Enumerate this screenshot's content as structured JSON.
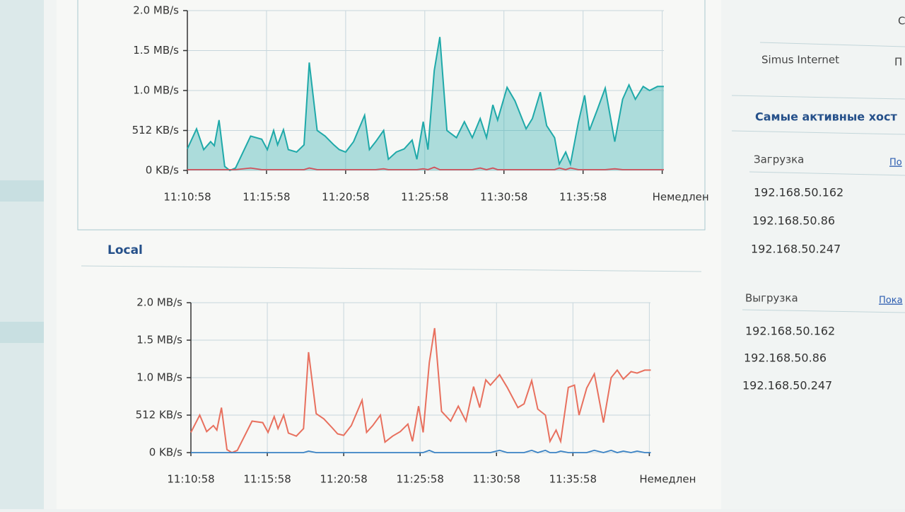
{
  "chart_data": [
    {
      "type": "area",
      "x": [
        0,
        0.58,
        1.03,
        1.47,
        1.7,
        2.0,
        2.36,
        2.68,
        3.04,
        4.0,
        4.7,
        5.05,
        5.45,
        5.7,
        6.07,
        6.38,
        6.9,
        7.37,
        7.7,
        8.2,
        8.7,
        9.25,
        9.6,
        10.0,
        10.5,
        11.2,
        11.5,
        11.9,
        12.4,
        12.7,
        13.2,
        13.7,
        14.2,
        14.5,
        14.9,
        15.2,
        15.6,
        15.95,
        16.4,
        17.0,
        17.5,
        18.0,
        18.5,
        18.9,
        19.3,
        19.6,
        20.2,
        20.7,
        21.4,
        21.8,
        22.3,
        22.7,
        23.2,
        23.5,
        23.9,
        24.2,
        24.7,
        25.1,
        25.4,
        25.9,
        26.4,
        27.0,
        27.5,
        27.9,
        28.3,
        28.8,
        29.2,
        29.7,
        30.1
      ],
      "series": [
        {
          "color": "#1fa9a9",
          "values": [
            0.27,
            0.52,
            0.26,
            0.36,
            0.31,
            0.63,
            0.05,
            0,
            0.03,
            0.43,
            0.39,
            0.26,
            0.5,
            0.32,
            0.51,
            0.26,
            0.23,
            0.32,
            1.35,
            0.5,
            0.43,
            0.32,
            0.26,
            0.23,
            0.36,
            0.69,
            0.26,
            0.36,
            0.5,
            0.14,
            0.23,
            0.27,
            0.38,
            0.14,
            0.61,
            0.26,
            1.25,
            1.67,
            0.5,
            0.41,
            0.61,
            0.41,
            0.65,
            0.41,
            0.82,
            0.63,
            1.04,
            0.87,
            0.52,
            0.65,
            0.98,
            0.56,
            0.41,
            0.08,
            0.23,
            0.08,
            0.6,
            0.94,
            0.5,
            0.76,
            1.03,
            0.36,
            0.89,
            1.07,
            0.89,
            1.05,
            1.0,
            1.05,
            1.05
          ]
        },
        {
          "color": "#d2505a",
          "values": [
            0.01,
            0.01,
            0.01,
            0.01,
            0.01,
            0.01,
            0.01,
            0.01,
            0.01,
            0.03,
            0.01,
            0.01,
            0.01,
            0.01,
            0.01,
            0.01,
            0.01,
            0.01,
            0.03,
            0.01,
            0.01,
            0.01,
            0.01,
            0.01,
            0.01,
            0.01,
            0.01,
            0.01,
            0.02,
            0.01,
            0.01,
            0.01,
            0.01,
            0.01,
            0.02,
            0.01,
            0.04,
            0.01,
            0.01,
            0.01,
            0.01,
            0.01,
            0.03,
            0.01,
            0.03,
            0.01,
            0.01,
            0.01,
            0.01,
            0.01,
            0.01,
            0.01,
            0.01,
            0.03,
            0.01,
            0.03,
            0.01,
            0.01,
            0.01,
            0.01,
            0.01,
            0.02,
            0.01,
            0.01,
            0.01,
            0.01,
            0.01,
            0.01,
            0.01
          ]
        }
      ],
      "xlim": [
        0,
        31
      ],
      "xticks": [
        {
          "value": 0,
          "label": "11:10:58"
        },
        {
          "value": 5,
          "label": "11:15:58"
        },
        {
          "value": 10,
          "label": "11:20:58"
        },
        {
          "value": 15,
          "label": "11:25:58"
        },
        {
          "value": 20,
          "label": "11:30:58"
        },
        {
          "value": 25,
          "label": "11:35:58"
        },
        {
          "value": 30,
          "label": "Немедлен"
        }
      ],
      "ylim": [
        0,
        2
      ],
      "yticks": [
        {
          "value": 0,
          "label": "0 KB/s"
        },
        {
          "value": 0.5,
          "label": "512 KB/s"
        },
        {
          "value": 1,
          "label": "1.0 MB/s"
        },
        {
          "value": 1.5,
          "label": "1.5 MB/s"
        },
        {
          "value": 2,
          "label": "2.0 MB/s"
        }
      ],
      "grid": true
    },
    {
      "type": "line",
      "title": "Local",
      "x": [
        0,
        0.58,
        1.03,
        1.47,
        1.7,
        2.0,
        2.36,
        2.68,
        3.04,
        4.0,
        4.7,
        5.05,
        5.45,
        5.7,
        6.07,
        6.38,
        6.9,
        7.37,
        7.7,
        8.2,
        8.7,
        9.25,
        9.6,
        10.0,
        10.5,
        11.2,
        11.5,
        11.9,
        12.4,
        12.7,
        13.2,
        13.7,
        14.2,
        14.5,
        14.9,
        15.2,
        15.6,
        15.95,
        16.4,
        17.0,
        17.5,
        18.0,
        18.5,
        18.9,
        19.3,
        19.6,
        20.2,
        20.7,
        21.4,
        21.8,
        22.3,
        22.7,
        23.2,
        23.5,
        23.9,
        24.2,
        24.7,
        25.1,
        25.4,
        25.9,
        26.4,
        27.0,
        27.5,
        27.9,
        28.3,
        28.8,
        29.2,
        29.7,
        30.1
      ],
      "series": [
        {
          "color": "#e8705e",
          "values": [
            0.27,
            0.5,
            0.28,
            0.36,
            0.3,
            0.6,
            0.04,
            0,
            0.03,
            0.42,
            0.4,
            0.27,
            0.48,
            0.32,
            0.5,
            0.26,
            0.22,
            0.32,
            1.34,
            0.52,
            0.45,
            0.33,
            0.25,
            0.23,
            0.36,
            0.7,
            0.27,
            0.36,
            0.5,
            0.14,
            0.22,
            0.28,
            0.38,
            0.15,
            0.62,
            0.27,
            1.2,
            1.66,
            0.55,
            0.42,
            0.62,
            0.42,
            0.88,
            0.6,
            0.97,
            0.9,
            1.04,
            0.87,
            0.6,
            0.65,
            0.96,
            0.58,
            0.5,
            0.15,
            0.3,
            0.15,
            0.87,
            0.9,
            0.5,
            0.86,
            1.05,
            0.4,
            1.0,
            1.1,
            0.98,
            1.08,
            1.06,
            1.1,
            1.1
          ]
        },
        {
          "color": "#3a82c4",
          "values": [
            0,
            0,
            0,
            0,
            0,
            0,
            0,
            0,
            0,
            0,
            0,
            0,
            0,
            0,
            0,
            0,
            0,
            0,
            0.02,
            0,
            0,
            0,
            0,
            0,
            0,
            0,
            0,
            0,
            0,
            0,
            0,
            0,
            0,
            0,
            0,
            0,
            0.03,
            0,
            0,
            0,
            0,
            0,
            0,
            0,
            0,
            0,
            0.03,
            0,
            0,
            0,
            0.03,
            0,
            0.03,
            0,
            0,
            0.02,
            0,
            0,
            0,
            0,
            0.03,
            0,
            0.03,
            0,
            0.02,
            0,
            0.02,
            0,
            0
          ]
        }
      ],
      "xlim": [
        0,
        31
      ],
      "xticks": [
        {
          "value": 0,
          "label": "11:10:58"
        },
        {
          "value": 5,
          "label": "11:15:58"
        },
        {
          "value": 10,
          "label": "11:20:58"
        },
        {
          "value": 15,
          "label": "11:25:58"
        },
        {
          "value": 20,
          "label": "11:30:58"
        },
        {
          "value": 25,
          "label": "11:35:58"
        },
        {
          "value": 30,
          "label": "Немедлен"
        }
      ],
      "ylim": [
        0,
        2
      ],
      "yticks": [
        {
          "value": 0,
          "label": "0 KB/s"
        },
        {
          "value": 0.5,
          "label": "512 KB/s"
        },
        {
          "value": 1,
          "label": "1.0 MB/s"
        },
        {
          "value": 1.5,
          "label": "1.5 MB/s"
        },
        {
          "value": 2,
          "label": "2.0 MB/s"
        }
      ],
      "grid": true
    }
  ],
  "sidebar": {
    "top_cut": "С",
    "provider": "Simus Internet",
    "provider_cut": "П",
    "heading": "Самые активные хост",
    "download": {
      "label": "Загрузка",
      "link": "По",
      "hosts": [
        "192.168.50.162",
        "192.168.50.86",
        "192.168.50.247"
      ]
    },
    "upload": {
      "label": "Выгрузка",
      "link": "Пока",
      "hosts": [
        "192.168.50.162",
        "192.168.50.86",
        "192.168.50.247"
      ]
    }
  }
}
